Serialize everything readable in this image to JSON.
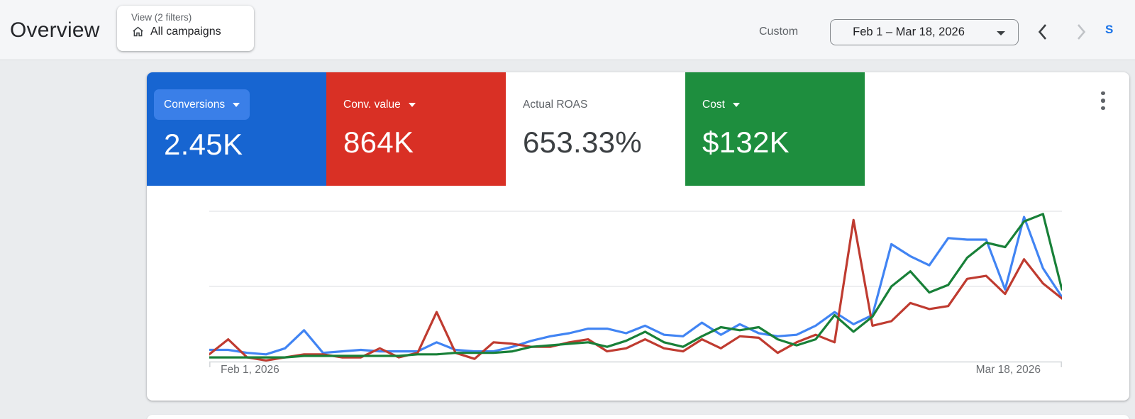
{
  "header": {
    "page_title": "Overview",
    "view_chip": {
      "label": "View (2 filters)",
      "value": "All campaigns",
      "icon": "home-icon"
    },
    "date_range": {
      "preset_label": "Custom",
      "value": "Feb 1 – Mar 18, 2026",
      "prev_icon": "chevron-left-icon",
      "next_icon": "chevron-right-icon",
      "next_disabled": true
    },
    "show_link_text": "S"
  },
  "scorecards": [
    {
      "label": "Conversions",
      "value": "2.45K",
      "bg": "#1765d1",
      "text": "#ffffff",
      "chip_bg": "#3a7fe8",
      "dropdown": true
    },
    {
      "label": "Conv. value",
      "value": "864K",
      "bg": "#d93025",
      "text": "#ffffff",
      "dropdown": true
    },
    {
      "label": "Actual ROAS",
      "value": "653.33%",
      "bg": "#ffffff",
      "text": "#3c4043",
      "label_color": "#5f6368",
      "dropdown": false
    },
    {
      "label": "Cost",
      "value": "$132K",
      "bg": "#1e8e3e",
      "text": "#ffffff",
      "dropdown": true
    }
  ],
  "card_menu_icon": "kebab-menu-icon",
  "chart_data": {
    "type": "line",
    "x_axis": {
      "start_label": "Feb 1, 2026",
      "end_label": "Mar 18, 2026",
      "unit": "day",
      "n_points": 46
    },
    "y_axis_labels_visible": false,
    "ylim": [
      0,
      100
    ],
    "grid": true,
    "note": "values are percent of plot height; no y tick labels shown in UI",
    "series": [
      {
        "name": "Conversions",
        "color": "#4184f3",
        "values": [
          8,
          8,
          6,
          5,
          9,
          21,
          6,
          7,
          8,
          7,
          7,
          7,
          13,
          8,
          7,
          7,
          10,
          14,
          17,
          19,
          22,
          22,
          19,
          24,
          18,
          17,
          26,
          18,
          25,
          19,
          17,
          18,
          24,
          33,
          25,
          31,
          78,
          70,
          64,
          82,
          81,
          81,
          48,
          96,
          62,
          43
        ]
      },
      {
        "name": "Conv. value",
        "color": "#bf3b30",
        "values": [
          5,
          15,
          3,
          1,
          3,
          5,
          5,
          3,
          3,
          9,
          3,
          6,
          33,
          6,
          2,
          13,
          12,
          10,
          10,
          13,
          15,
          7,
          9,
          15,
          9,
          7,
          15,
          9,
          17,
          16,
          6,
          13,
          18,
          13,
          94,
          24,
          27,
          39,
          35,
          37,
          55,
          57,
          45,
          68,
          52,
          42
        ]
      },
      {
        "name": "Cost",
        "color": "#188038",
        "values": [
          3,
          3,
          3,
          3,
          3,
          4,
          4,
          4,
          4,
          4,
          4,
          5,
          5,
          6,
          6,
          6,
          7,
          10,
          11,
          12,
          13,
          10,
          14,
          20,
          13,
          10,
          17,
          23,
          21,
          23,
          15,
          11,
          15,
          31,
          20,
          30,
          50,
          60,
          46,
          51,
          69,
          79,
          76,
          93,
          98,
          48
        ]
      }
    ]
  }
}
